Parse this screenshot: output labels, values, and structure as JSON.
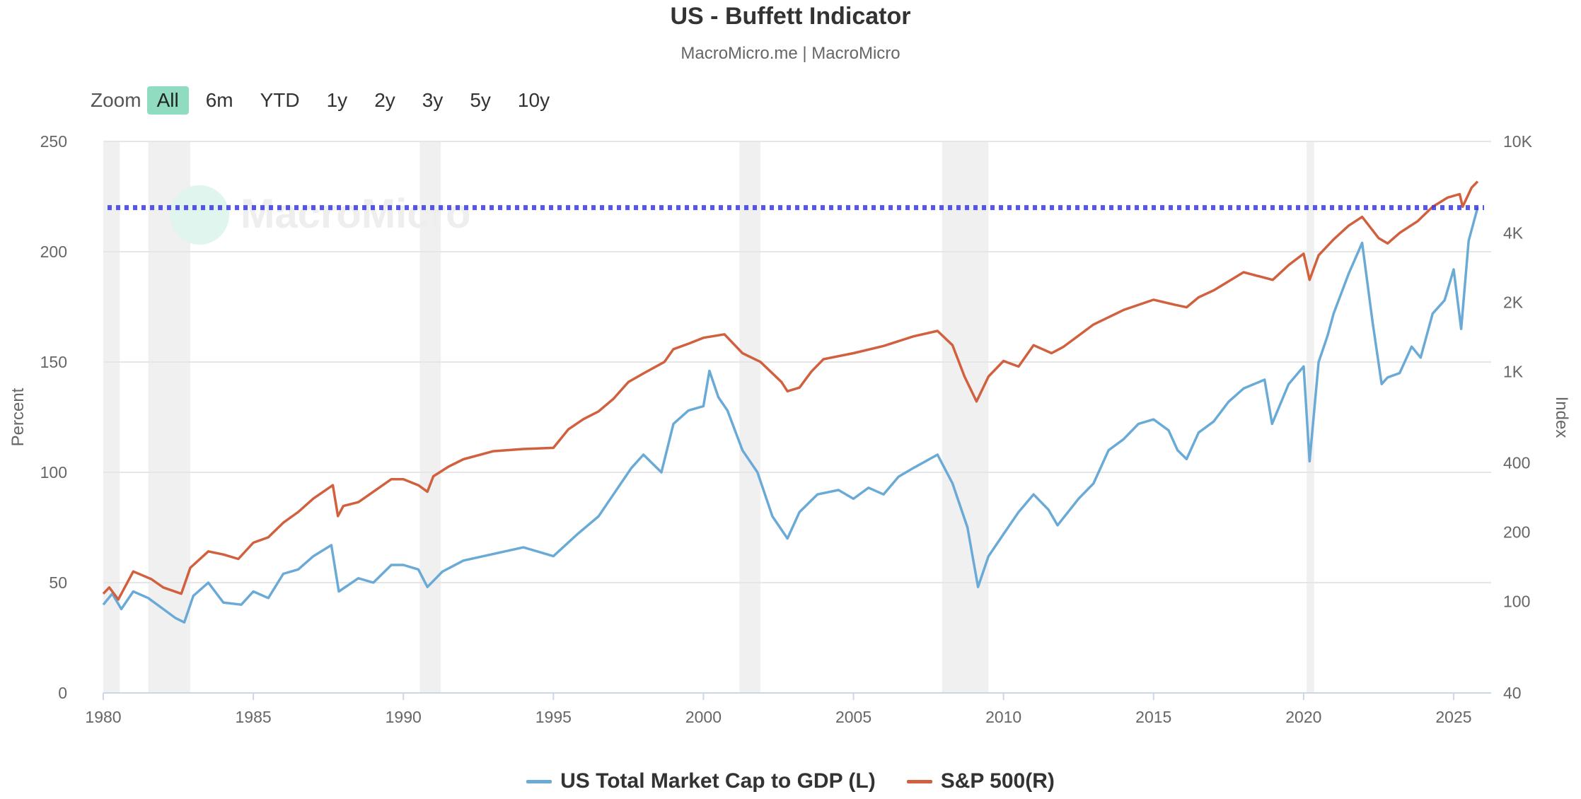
{
  "header": {
    "title": "US - Buffett Indicator",
    "subtitle": "MacroMicro.me | MacroMicro"
  },
  "zoom": {
    "label": "Zoom",
    "buttons": [
      "All",
      "6m",
      "YTD",
      "1y",
      "2y",
      "3y",
      "5y",
      "10y"
    ],
    "active": "All"
  },
  "watermark": "MacroMicro",
  "colors": {
    "market_cap": "#6aaad6",
    "sp500": "#d0603e",
    "reference_line": "#3a3ae0",
    "recession": "#f0f0f0",
    "grid": "#e6e6e6",
    "zoom_active": "#8fdcc0"
  },
  "chart_data": {
    "type": "line",
    "title": "US - Buffett Indicator",
    "x_ticks": [
      "1980",
      "1985",
      "1990",
      "1995",
      "2000",
      "2005",
      "2010",
      "2015",
      "2020",
      "2025"
    ],
    "y_left": {
      "label": "Percent",
      "range": [
        0,
        250
      ],
      "ticks": [
        "0",
        "50",
        "100",
        "150",
        "200",
        "250"
      ]
    },
    "y_right": {
      "label": "Index",
      "scale": "log",
      "range": [
        40,
        10000
      ],
      "ticks": [
        "40",
        "100",
        "200",
        "400",
        "1K",
        "2K",
        "4K",
        "10K"
      ]
    },
    "reference_line": {
      "axis": "left",
      "value": 220,
      "style": "dotted"
    },
    "recession_periods": [
      [
        1980.0,
        1980.55
      ],
      [
        1981.5,
        1982.9
      ],
      [
        1990.55,
        1991.25
      ],
      [
        2001.2,
        2001.9
      ],
      [
        2007.95,
        2009.5
      ],
      [
        2020.1,
        2020.35
      ]
    ],
    "legend": [
      "US Total Market Cap to GDP (L)",
      "S&P 500(R)"
    ],
    "legend_position": "bottom-center",
    "grid": true,
    "series": [
      {
        "name": "US Total Market Cap to GDP (L)",
        "axis": "left",
        "x": [
          1980.0,
          1980.3,
          1980.6,
          1981.0,
          1981.5,
          1982.0,
          1982.4,
          1982.7,
          1983.0,
          1983.5,
          1984.0,
          1984.6,
          1985.0,
          1985.5,
          1986.0,
          1986.5,
          1987.0,
          1987.6,
          1987.85,
          1988.5,
          1989.0,
          1989.6,
          1990.0,
          1990.5,
          1990.8,
          1991.3,
          1992.0,
          1993.0,
          1994.0,
          1994.5,
          1995.0,
          1995.8,
          1996.5,
          1997.0,
          1997.6,
          1998.0,
          1998.6,
          1999.0,
          1999.5,
          2000.0,
          2000.2,
          2000.5,
          2000.8,
          2001.3,
          2001.8,
          2002.3,
          2002.8,
          2003.2,
          2003.8,
          2004.5,
          2005.0,
          2005.5,
          2006.0,
          2006.5,
          2007.0,
          2007.8,
          2008.3,
          2008.8,
          2009.15,
          2009.5,
          2010.0,
          2010.5,
          2011.0,
          2011.5,
          2011.8,
          2012.5,
          2013.0,
          2013.5,
          2014.0,
          2014.5,
          2015.0,
          2015.5,
          2015.8,
          2016.1,
          2016.5,
          2017.0,
          2017.5,
          2018.0,
          2018.7,
          2018.95,
          2019.5,
          2020.0,
          2020.2,
          2020.5,
          2020.8,
          2021.0,
          2021.5,
          2021.95,
          2022.3,
          2022.6,
          2022.8,
          2023.2,
          2023.6,
          2023.9,
          2024.3,
          2024.7,
          2025.0,
          2025.25,
          2025.5,
          2025.8
        ],
        "values": [
          40,
          45,
          38,
          46,
          43,
          38,
          34,
          32,
          44,
          50,
          41,
          40,
          46,
          43,
          54,
          56,
          62,
          67,
          46,
          52,
          50,
          58,
          58,
          56,
          48,
          55,
          60,
          63,
          66,
          64,
          62,
          72,
          80,
          90,
          102,
          108,
          100,
          122,
          128,
          130,
          146,
          134,
          128,
          110,
          100,
          80,
          70,
          82,
          90,
          92,
          88,
          93,
          90,
          98,
          102,
          108,
          95,
          75,
          48,
          62,
          72,
          82,
          90,
          83,
          76,
          88,
          95,
          110,
          115,
          122,
          124,
          119,
          110,
          106,
          118,
          123,
          132,
          138,
          142,
          122,
          140,
          148,
          105,
          150,
          162,
          172,
          190,
          204,
          168,
          140,
          143,
          145,
          157,
          152,
          172,
          178,
          192,
          165,
          205,
          220
        ]
      },
      {
        "name": "S&P 500(R)",
        "axis": "right",
        "x": [
          1980.0,
          1980.2,
          1980.5,
          1981.0,
          1981.6,
          1982.0,
          1982.6,
          1982.9,
          1983.5,
          1984.0,
          1984.5,
          1985.0,
          1985.5,
          1986.0,
          1986.5,
          1987.0,
          1987.65,
          1987.82,
          1988.0,
          1988.5,
          1989.0,
          1989.6,
          1990.0,
          1990.5,
          1990.8,
          1991.0,
          1991.5,
          1992.0,
          1993.0,
          1994.0,
          1995.0,
          1995.5,
          1996.0,
          1996.5,
          1997.0,
          1997.5,
          1998.0,
          1998.7,
          1999.0,
          1999.5,
          2000.0,
          2000.7,
          2001.3,
          2001.9,
          2002.6,
          2002.8,
          2003.2,
          2003.6,
          2004.0,
          2005.0,
          2006.0,
          2007.0,
          2007.8,
          2008.3,
          2008.7,
          2009.1,
          2009.5,
          2010.0,
          2010.5,
          2011.0,
          2011.6,
          2012.0,
          2013.0,
          2014.0,
          2015.0,
          2015.7,
          2016.1,
          2016.5,
          2017.0,
          2018.0,
          2018.97,
          2019.5,
          2020.0,
          2020.2,
          2020.5,
          2021.0,
          2021.5,
          2021.95,
          2022.5,
          2022.8,
          2023.2,
          2023.8,
          2024.3,
          2024.8,
          2025.2,
          2025.3,
          2025.6,
          2025.8
        ],
        "values": [
          108,
          115,
          102,
          135,
          125,
          115,
          108,
          140,
          165,
          160,
          153,
          180,
          190,
          220,
          245,
          280,
          320,
          235,
          260,
          270,
          300,
          340,
          340,
          320,
          300,
          350,
          385,
          415,
          450,
          460,
          465,
          560,
          620,
          670,
          760,
          900,
          980,
          1100,
          1250,
          1320,
          1400,
          1450,
          1200,
          1100,
          900,
          820,
          850,
          1000,
          1130,
          1200,
          1290,
          1420,
          1500,
          1300,
          950,
          740,
          950,
          1110,
          1050,
          1300,
          1200,
          1280,
          1600,
          1850,
          2050,
          1950,
          1900,
          2100,
          2250,
          2700,
          2500,
          2900,
          3250,
          2500,
          3200,
          3750,
          4300,
          4700,
          3800,
          3600,
          4000,
          4500,
          5200,
          5700,
          5900,
          5200,
          6300,
          6700
        ]
      }
    ]
  }
}
